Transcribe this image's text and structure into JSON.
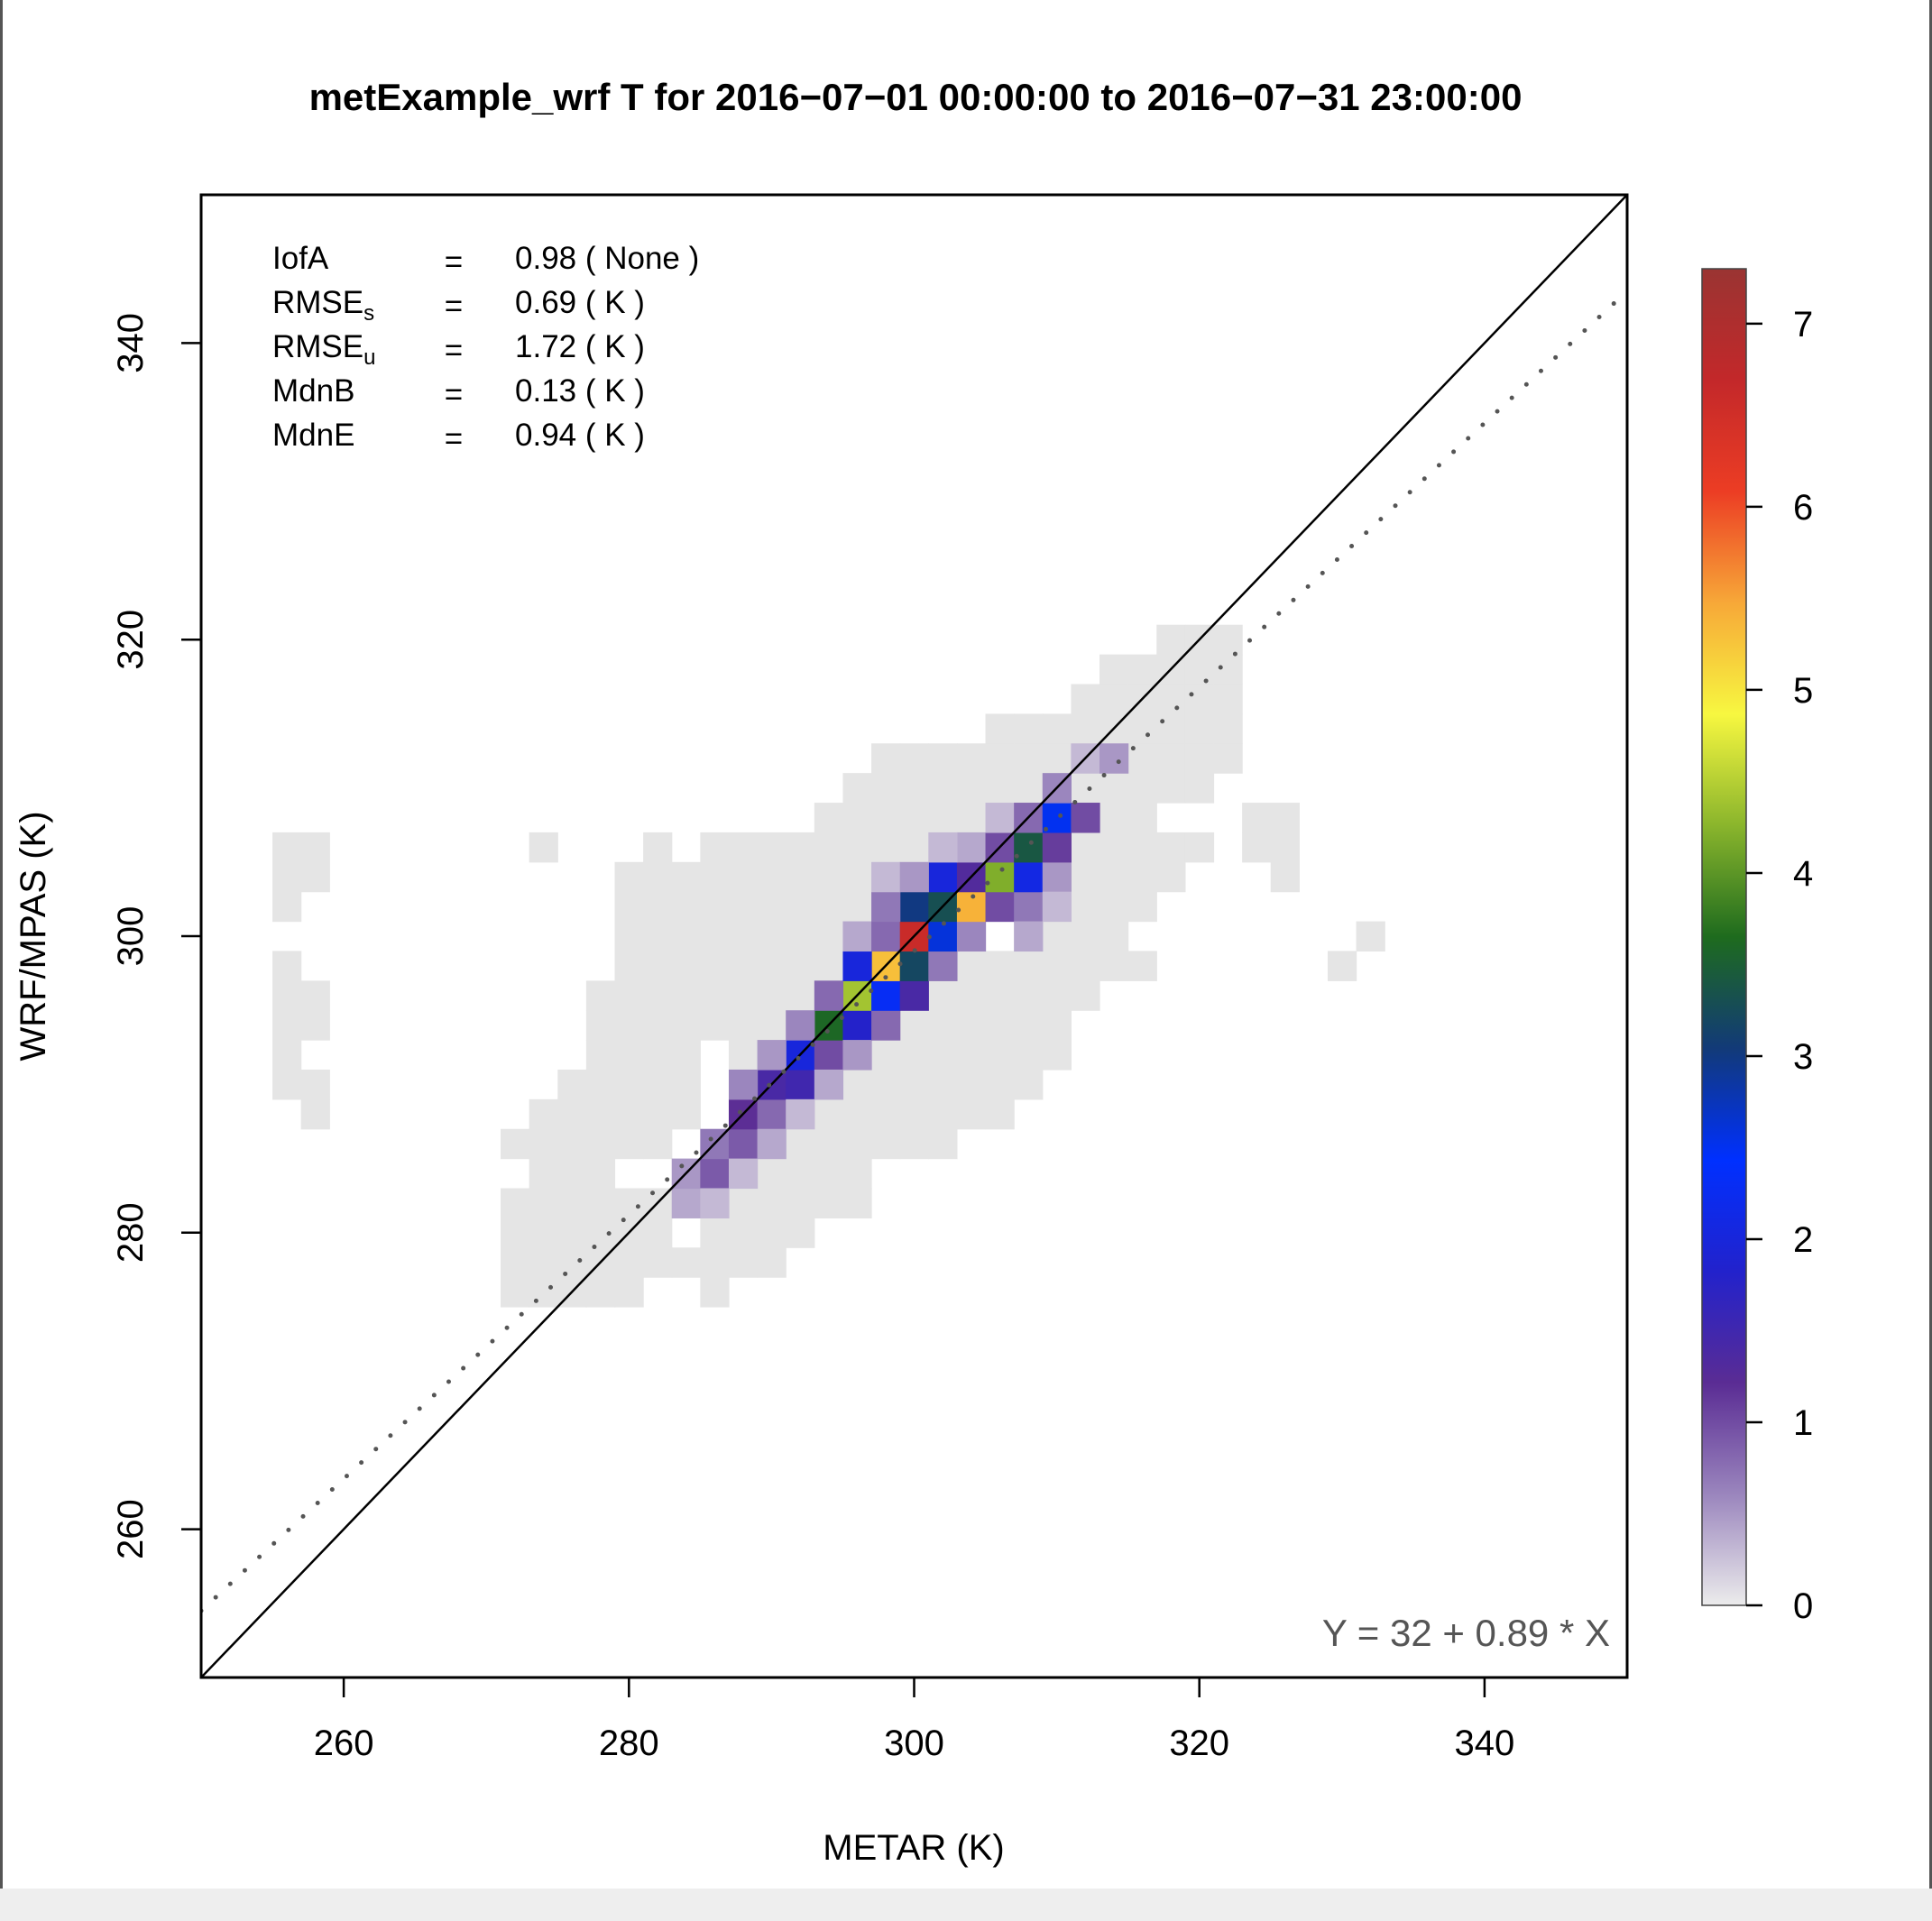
{
  "chart_data": {
    "type": "heatmap",
    "title": "metExample_wrf T for 2016−07−01 00:00:00 to 2016−07−31 23:00:00",
    "xlabel": "METAR (K)",
    "ylabel": "WRF/MPAS (K)",
    "xlim": [
      250,
      350
    ],
    "ylim": [
      250,
      350
    ],
    "xticks": [
      260,
      280,
      300,
      320,
      340
    ],
    "yticks": [
      260,
      280,
      300,
      320,
      340
    ],
    "bin_width": 2,
    "regression": {
      "intercept": 32,
      "slope": 0.89,
      "label": "Y = 32 + 0.89 * X"
    },
    "stats": [
      {
        "name": "IofA",
        "sub": "",
        "eq": "=",
        "value": "0.98 ( None )"
      },
      {
        "name": "RMSE",
        "sub": "s",
        "eq": "=",
        "value": "0.69 ( K )"
      },
      {
        "name": "RMSE",
        "sub": "u",
        "eq": "=",
        "value": "1.72 ( K )"
      },
      {
        "name": "MdnB",
        "sub": "",
        "eq": "=",
        "value": "0.13 ( K )"
      },
      {
        "name": "MdnE",
        "sub": "",
        "eq": "=",
        "value": "0.94 ( K )"
      }
    ],
    "colorbar": {
      "min": 0,
      "max": 7.3,
      "ticks": [
        0,
        1,
        2,
        3,
        4,
        5,
        6,
        7
      ],
      "colors": [
        "#ececec",
        "#9a85bd",
        "#5a2c94",
        "#2222cc",
        "#0030ff",
        "#123a78",
        "#1e6b1e",
        "#8ab52c",
        "#f7f740",
        "#f7a838",
        "#ec3d24",
        "#c3282a",
        "#9a3432"
      ],
      "low_color": "#e5e5e5"
    },
    "low_cells": [
      [
        256,
        304
      ],
      [
        256,
        306
      ],
      [
        256,
        302
      ],
      [
        256,
        298
      ],
      [
        256,
        296
      ],
      [
        256,
        294
      ],
      [
        256,
        292
      ],
      [
        256,
        290
      ],
      [
        258,
        296
      ],
      [
        258,
        294
      ],
      [
        258,
        290
      ],
      [
        258,
        288
      ],
      [
        258,
        304
      ],
      [
        258,
        306
      ],
      [
        274,
        306
      ],
      [
        272,
        286
      ],
      [
        272,
        282
      ],
      [
        272,
        280
      ],
      [
        272,
        278
      ],
      [
        272,
        276
      ],
      [
        274,
        288
      ],
      [
        274,
        286
      ],
      [
        274,
        284
      ],
      [
        274,
        282
      ],
      [
        274,
        280
      ],
      [
        274,
        278
      ],
      [
        274,
        276
      ],
      [
        276,
        290
      ],
      [
        276,
        288
      ],
      [
        276,
        286
      ],
      [
        276,
        284
      ],
      [
        276,
        282
      ],
      [
        276,
        280
      ],
      [
        276,
        278
      ],
      [
        276,
        276
      ],
      [
        278,
        296
      ],
      [
        278,
        294
      ],
      [
        278,
        292
      ],
      [
        278,
        290
      ],
      [
        278,
        288
      ],
      [
        278,
        286
      ],
      [
        278,
        284
      ],
      [
        278,
        282
      ],
      [
        278,
        280
      ],
      [
        278,
        278
      ],
      [
        278,
        276
      ],
      [
        280,
        304
      ],
      [
        280,
        302
      ],
      [
        280,
        300
      ],
      [
        280,
        298
      ],
      [
        280,
        296
      ],
      [
        280,
        294
      ],
      [
        280,
        292
      ],
      [
        280,
        290
      ],
      [
        280,
        288
      ],
      [
        280,
        286
      ],
      [
        280,
        282
      ],
      [
        280,
        280
      ],
      [
        280,
        278
      ],
      [
        280,
        276
      ],
      [
        282,
        306
      ],
      [
        282,
        304
      ],
      [
        282,
        302
      ],
      [
        282,
        300
      ],
      [
        282,
        298
      ],
      [
        282,
        296
      ],
      [
        282,
        294
      ],
      [
        282,
        292
      ],
      [
        282,
        290
      ],
      [
        282,
        288
      ],
      [
        282,
        286
      ],
      [
        282,
        282
      ],
      [
        282,
        280
      ],
      [
        282,
        278
      ],
      [
        284,
        304
      ],
      [
        284,
        302
      ],
      [
        284,
        300
      ],
      [
        284,
        298
      ],
      [
        284,
        296
      ],
      [
        284,
        294
      ],
      [
        284,
        292
      ],
      [
        284,
        290
      ],
      [
        284,
        288
      ],
      [
        284,
        278
      ],
      [
        286,
        306
      ],
      [
        286,
        304
      ],
      [
        286,
        302
      ],
      [
        286,
        300
      ],
      [
        286,
        298
      ],
      [
        286,
        296
      ],
      [
        286,
        294
      ],
      [
        286,
        280
      ],
      [
        286,
        278
      ],
      [
        286,
        276
      ],
      [
        288,
        306
      ],
      [
        288,
        304
      ],
      [
        288,
        302
      ],
      [
        288,
        300
      ],
      [
        288,
        298
      ],
      [
        288,
        296
      ],
      [
        288,
        294
      ],
      [
        288,
        292
      ],
      [
        288,
        282
      ],
      [
        288,
        280
      ],
      [
        288,
        278
      ],
      [
        290,
        306
      ],
      [
        290,
        304
      ],
      [
        290,
        302
      ],
      [
        290,
        300
      ],
      [
        290,
        298
      ],
      [
        290,
        296
      ],
      [
        290,
        294
      ],
      [
        290,
        292
      ],
      [
        290,
        284
      ],
      [
        290,
        282
      ],
      [
        290,
        280
      ],
      [
        290,
        278
      ],
      [
        292,
        306
      ],
      [
        292,
        304
      ],
      [
        292,
        302
      ],
      [
        292,
        300
      ],
      [
        292,
        298
      ],
      [
        292,
        296
      ],
      [
        292,
        294
      ],
      [
        292,
        286
      ],
      [
        292,
        284
      ],
      [
        292,
        282
      ],
      [
        292,
        280
      ],
      [
        294,
        308
      ],
      [
        294,
        306
      ],
      [
        294,
        304
      ],
      [
        294,
        302
      ],
      [
        294,
        300
      ],
      [
        294,
        298
      ],
      [
        294,
        296
      ],
      [
        294,
        288
      ],
      [
        294,
        286
      ],
      [
        294,
        284
      ],
      [
        294,
        282
      ],
      [
        296,
        310
      ],
      [
        296,
        308
      ],
      [
        296,
        306
      ],
      [
        296,
        304
      ],
      [
        296,
        302
      ],
      [
        296,
        300
      ],
      [
        296,
        290
      ],
      [
        296,
        288
      ],
      [
        296,
        286
      ],
      [
        296,
        284
      ],
      [
        296,
        282
      ],
      [
        298,
        312
      ],
      [
        298,
        310
      ],
      [
        298,
        308
      ],
      [
        298,
        306
      ],
      [
        298,
        304
      ],
      [
        298,
        302
      ],
      [
        298,
        292
      ],
      [
        298,
        290
      ],
      [
        298,
        288
      ],
      [
        298,
        286
      ],
      [
        300,
        312
      ],
      [
        300,
        310
      ],
      [
        300,
        308
      ],
      [
        300,
        306
      ],
      [
        300,
        304
      ],
      [
        300,
        294
      ],
      [
        300,
        292
      ],
      [
        300,
        290
      ],
      [
        300,
        288
      ],
      [
        300,
        286
      ],
      [
        302,
        312
      ],
      [
        302,
        310
      ],
      [
        302,
        308
      ],
      [
        302,
        306
      ],
      [
        302,
        296
      ],
      [
        302,
        294
      ],
      [
        302,
        292
      ],
      [
        302,
        290
      ],
      [
        302,
        288
      ],
      [
        302,
        286
      ],
      [
        304,
        312
      ],
      [
        304,
        310
      ],
      [
        304,
        308
      ],
      [
        304,
        298
      ],
      [
        304,
        296
      ],
      [
        304,
        294
      ],
      [
        304,
        292
      ],
      [
        304,
        290
      ],
      [
        304,
        288
      ],
      [
        306,
        314
      ],
      [
        306,
        312
      ],
      [
        306,
        310
      ],
      [
        306,
        308
      ],
      [
        306,
        298
      ],
      [
        306,
        296
      ],
      [
        306,
        294
      ],
      [
        306,
        292
      ],
      [
        306,
        290
      ],
      [
        306,
        288
      ],
      [
        308,
        314
      ],
      [
        308,
        312
      ],
      [
        308,
        310
      ],
      [
        308,
        300
      ],
      [
        308,
        298
      ],
      [
        308,
        296
      ],
      [
        308,
        294
      ],
      [
        308,
        292
      ],
      [
        308,
        290
      ],
      [
        310,
        314
      ],
      [
        310,
        312
      ],
      [
        310,
        306
      ],
      [
        310,
        304
      ],
      [
        310,
        302
      ],
      [
        310,
        300
      ],
      [
        310,
        298
      ],
      [
        310,
        296
      ],
      [
        310,
        294
      ],
      [
        310,
        292
      ],
      [
        312,
        316
      ],
      [
        312,
        314
      ],
      [
        312,
        310
      ],
      [
        312,
        306
      ],
      [
        312,
        304
      ],
      [
        312,
        302
      ],
      [
        312,
        300
      ],
      [
        312,
        298
      ],
      [
        312,
        296
      ],
      [
        314,
        318
      ],
      [
        314,
        316
      ],
      [
        314,
        314
      ],
      [
        314,
        310
      ],
      [
        314,
        308
      ],
      [
        314,
        306
      ],
      [
        314,
        304
      ],
      [
        314,
        302
      ],
      [
        314,
        300
      ],
      [
        314,
        298
      ],
      [
        316,
        318
      ],
      [
        316,
        316
      ],
      [
        316,
        314
      ],
      [
        316,
        312
      ],
      [
        316,
        310
      ],
      [
        316,
        308
      ],
      [
        316,
        306
      ],
      [
        316,
        304
      ],
      [
        316,
        302
      ],
      [
        316,
        298
      ],
      [
        318,
        320
      ],
      [
        318,
        318
      ],
      [
        318,
        316
      ],
      [
        318,
        314
      ],
      [
        318,
        312
      ],
      [
        318,
        310
      ],
      [
        318,
        306
      ],
      [
        318,
        304
      ],
      [
        320,
        320
      ],
      [
        320,
        318
      ],
      [
        320,
        316
      ],
      [
        320,
        314
      ],
      [
        320,
        312
      ],
      [
        320,
        310
      ],
      [
        320,
        306
      ],
      [
        322,
        320
      ],
      [
        322,
        318
      ],
      [
        322,
        316
      ],
      [
        322,
        314
      ],
      [
        322,
        312
      ],
      [
        324,
        308
      ],
      [
        324,
        306
      ],
      [
        326,
        308
      ],
      [
        326,
        306
      ],
      [
        326,
        304
      ],
      [
        330,
        298
      ],
      [
        332,
        300
      ]
    ],
    "hot_cells": [
      [
        284,
        282,
        0.4
      ],
      [
        284,
        284,
        0.5
      ],
      [
        286,
        284,
        0.9
      ],
      [
        286,
        286,
        0.7
      ],
      [
        288,
        286,
        0.9
      ],
      [
        288,
        288,
        1.2
      ],
      [
        288,
        284,
        0.3
      ],
      [
        286,
        282,
        0.3
      ],
      [
        290,
        288,
        0.8
      ],
      [
        290,
        290,
        1.4
      ],
      [
        290,
        286,
        0.4
      ],
      [
        288,
        290,
        0.6
      ],
      [
        292,
        290,
        1.5
      ],
      [
        292,
        292,
        2.0
      ],
      [
        292,
        288,
        0.3
      ],
      [
        290,
        292,
        0.5
      ],
      [
        294,
        292,
        1.0
      ],
      [
        294,
        294,
        3.6
      ],
      [
        294,
        290,
        0.4
      ],
      [
        292,
        294,
        0.6
      ],
      [
        296,
        294,
        1.8
      ],
      [
        296,
        296,
        4.4
      ],
      [
        296,
        292,
        0.5
      ],
      [
        294,
        296,
        0.8
      ],
      [
        298,
        294,
        0.8
      ],
      [
        298,
        296,
        2.3
      ],
      [
        298,
        298,
        5.3
      ],
      [
        296,
        298,
        2.0
      ],
      [
        296,
        300,
        0.4
      ],
      [
        298,
        300,
        0.8
      ],
      [
        300,
        296,
        1.4
      ],
      [
        300,
        298,
        3.2
      ],
      [
        300,
        300,
        6.6
      ],
      [
        300,
        302,
        3.0
      ],
      [
        298,
        302,
        0.7
      ],
      [
        298,
        304,
        0.3
      ],
      [
        302,
        298,
        0.7
      ],
      [
        302,
        300,
        2.6
      ],
      [
        302,
        302,
        3.3
      ],
      [
        302,
        304,
        2.0
      ],
      [
        300,
        304,
        0.5
      ],
      [
        304,
        300,
        0.6
      ],
      [
        304,
        302,
        5.4
      ],
      [
        304,
        304,
        1.3
      ],
      [
        304,
        306,
        0.4
      ],
      [
        302,
        306,
        0.3
      ],
      [
        306,
        302,
        1.0
      ],
      [
        306,
        304,
        4.2
      ],
      [
        306,
        306,
        1.0
      ],
      [
        306,
        308,
        0.3
      ],
      [
        308,
        302,
        0.7
      ],
      [
        308,
        304,
        2.1
      ],
      [
        308,
        306,
        3.4
      ],
      [
        308,
        308,
        0.8
      ],
      [
        310,
        304,
        0.5
      ],
      [
        310,
        306,
        1.1
      ],
      [
        310,
        308,
        2.5
      ],
      [
        310,
        310,
        0.6
      ],
      [
        312,
        308,
        1.0
      ],
      [
        312,
        312,
        0.3
      ],
      [
        314,
        312,
        0.5
      ],
      [
        308,
        300,
        0.4
      ],
      [
        310,
        302,
        0.3
      ]
    ]
  }
}
